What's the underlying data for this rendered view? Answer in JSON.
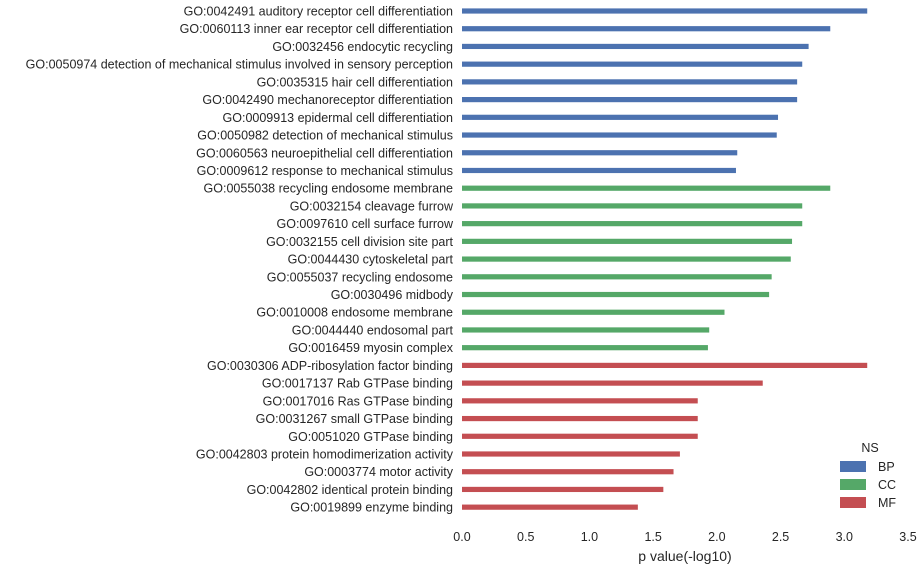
{
  "chart_data": {
    "type": "bar",
    "orientation": "horizontal",
    "xlabel": "p value(-log10)",
    "xlim": [
      0,
      3.5
    ],
    "xticks": [
      "0.0",
      "0.5",
      "1.0",
      "1.5",
      "2.0",
      "2.5",
      "3.0",
      "3.5"
    ],
    "grid": false,
    "legend": {
      "title": "NS",
      "placement": "bottom-right",
      "entries": [
        {
          "name": "BP",
          "color": "#4c72b0"
        },
        {
          "name": "CC",
          "color": "#55a868"
        },
        {
          "name": "MF",
          "color": "#c44e52"
        }
      ]
    },
    "bars": [
      {
        "label": "GO:0042491 auditory receptor cell differentiation",
        "value": 3.18,
        "ns": "BP"
      },
      {
        "label": "GO:0060113 inner ear receptor cell differentiation",
        "value": 2.89,
        "ns": "BP"
      },
      {
        "label": "GO:0032456 endocytic recycling",
        "value": 2.72,
        "ns": "BP"
      },
      {
        "label": "GO:0050974 detection of mechanical stimulus involved in sensory perception",
        "value": 2.67,
        "ns": "BP"
      },
      {
        "label": "GO:0035315 hair cell differentiation",
        "value": 2.63,
        "ns": "BP"
      },
      {
        "label": "GO:0042490 mechanoreceptor differentiation",
        "value": 2.63,
        "ns": "BP"
      },
      {
        "label": "GO:0009913 epidermal cell differentiation",
        "value": 2.48,
        "ns": "BP"
      },
      {
        "label": "GO:0050982 detection of mechanical stimulus",
        "value": 2.47,
        "ns": "BP"
      },
      {
        "label": "GO:0060563 neuroepithelial cell differentiation",
        "value": 2.16,
        "ns": "BP"
      },
      {
        "label": "GO:0009612 response to mechanical stimulus",
        "value": 2.15,
        "ns": "BP"
      },
      {
        "label": "GO:0055038 recycling endosome membrane",
        "value": 2.89,
        "ns": "CC"
      },
      {
        "label": "GO:0032154 cleavage furrow",
        "value": 2.67,
        "ns": "CC"
      },
      {
        "label": "GO:0097610 cell surface furrow",
        "value": 2.67,
        "ns": "CC"
      },
      {
        "label": "GO:0032155 cell division site part",
        "value": 2.59,
        "ns": "CC"
      },
      {
        "label": "GO:0044430 cytoskeletal part",
        "value": 2.58,
        "ns": "CC"
      },
      {
        "label": "GO:0055037 recycling endosome",
        "value": 2.43,
        "ns": "CC"
      },
      {
        "label": "GO:0030496 midbody",
        "value": 2.41,
        "ns": "CC"
      },
      {
        "label": "GO:0010008 endosome membrane",
        "value": 2.06,
        "ns": "CC"
      },
      {
        "label": "GO:0044440 endosomal part",
        "value": 1.94,
        "ns": "CC"
      },
      {
        "label": "GO:0016459 myosin complex",
        "value": 1.93,
        "ns": "CC"
      },
      {
        "label": "GO:0030306 ADP-ribosylation factor binding",
        "value": 3.18,
        "ns": "MF"
      },
      {
        "label": "GO:0017137 Rab GTPase binding",
        "value": 2.36,
        "ns": "MF"
      },
      {
        "label": "GO:0017016 Ras GTPase binding",
        "value": 1.85,
        "ns": "MF"
      },
      {
        "label": "GO:0031267 small GTPase binding",
        "value": 1.85,
        "ns": "MF"
      },
      {
        "label": "GO:0051020 GTPase binding",
        "value": 1.85,
        "ns": "MF"
      },
      {
        "label": "GO:0042803 protein homodimerization activity",
        "value": 1.71,
        "ns": "MF"
      },
      {
        "label": "GO:0003774 motor activity",
        "value": 1.66,
        "ns": "MF"
      },
      {
        "label": "GO:0042802 identical protein binding",
        "value": 1.58,
        "ns": "MF"
      },
      {
        "label": "GO:0019899 enzyme binding",
        "value": 1.38,
        "ns": "MF"
      }
    ]
  }
}
